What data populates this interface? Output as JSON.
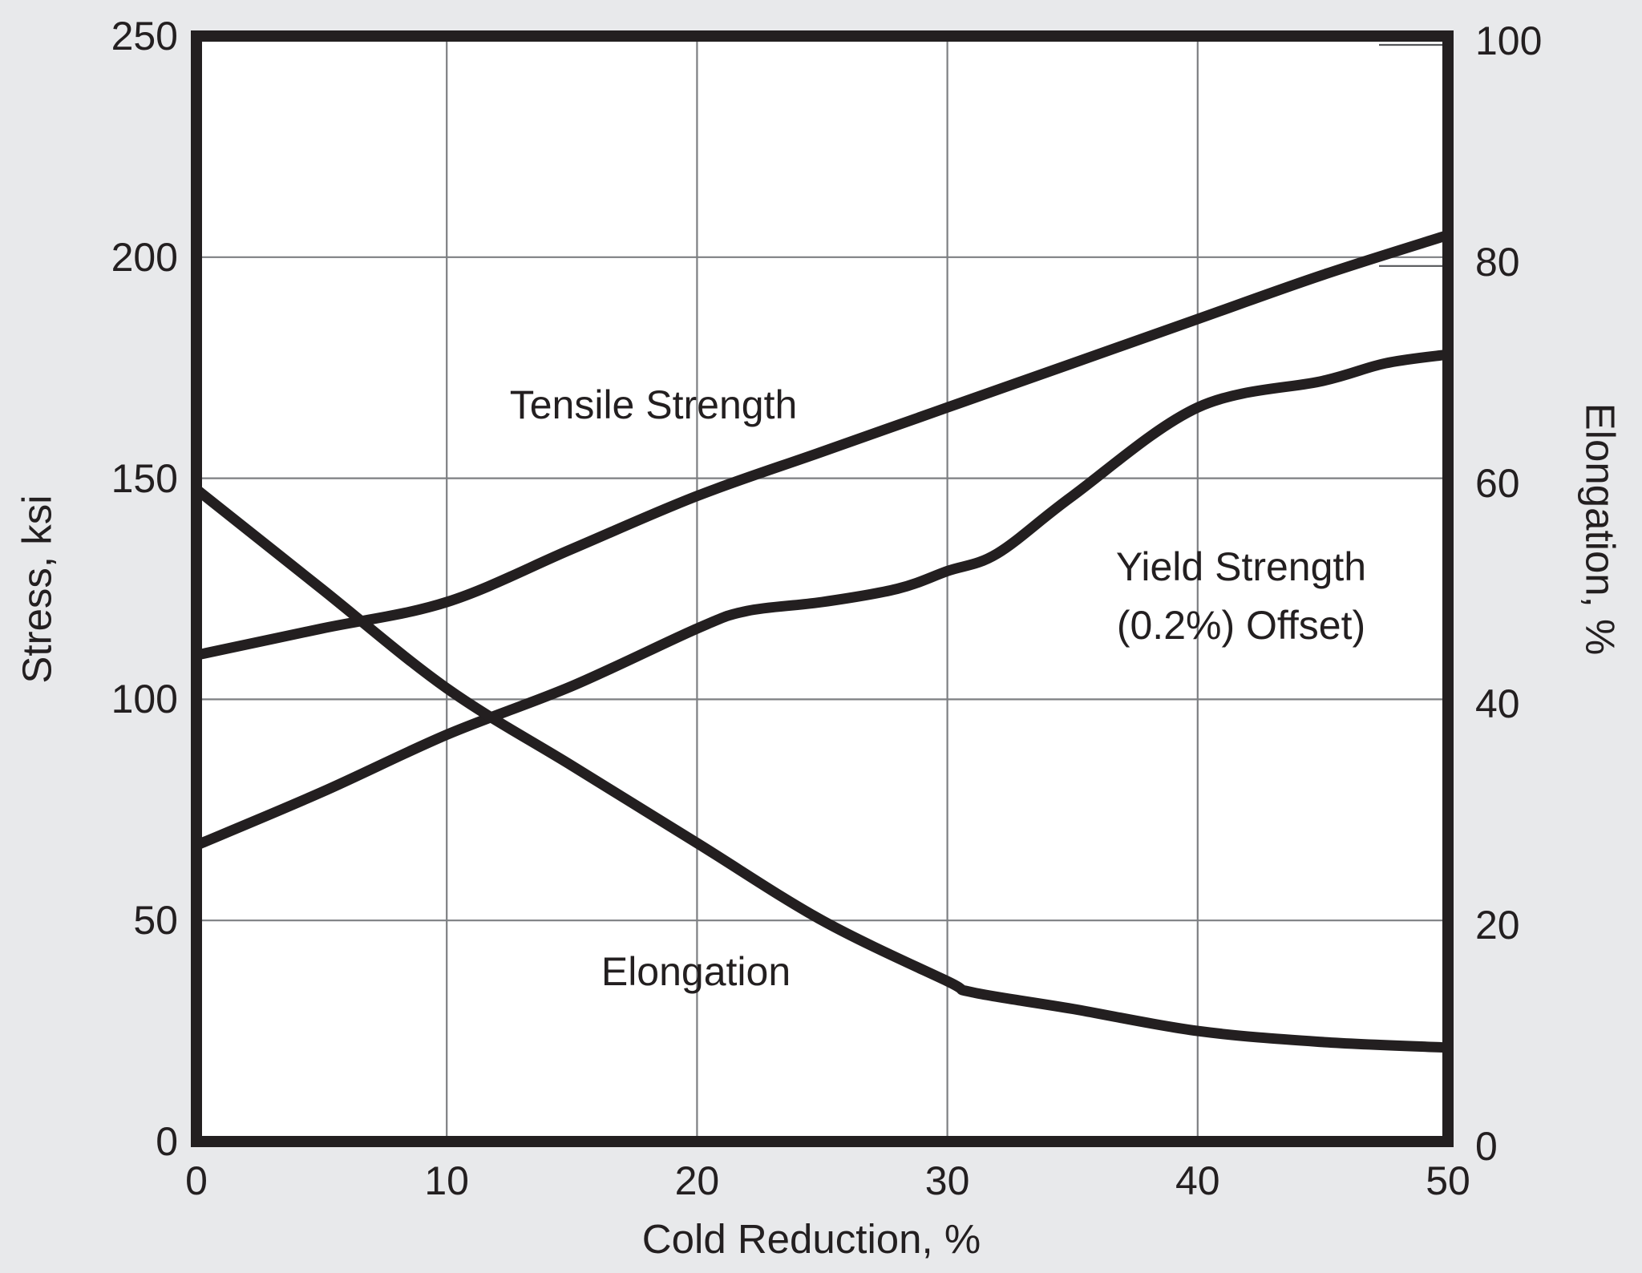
{
  "figure": {
    "background_color": "#e8e9eb",
    "plot_background": "#ffffff",
    "line_color": "#231f20",
    "grid_color": "#7d7f82",
    "text_color": "#231f20"
  },
  "axes": {
    "x": {
      "title": "Cold Reduction, %",
      "ticks": [
        0,
        10,
        20,
        30,
        40,
        50
      ],
      "range": [
        0,
        50
      ]
    },
    "y_left": {
      "title": "Stress, ksi",
      "ticks": [
        0,
        50,
        100,
        150,
        200,
        250
      ],
      "range": [
        0,
        250
      ]
    },
    "y_right": {
      "title": "Elongation, %",
      "ticks": [
        0,
        20,
        40,
        60,
        80,
        100
      ],
      "range": [
        0,
        100
      ]
    }
  },
  "curve_labels": {
    "tensile": "Tensile Strength",
    "yield_line1": "Yield Strength",
    "yield_line2": "(0.2%) Offset)",
    "elongation": "Elongation"
  },
  "chart_data": {
    "type": "line",
    "title": "",
    "xlabel": "Cold Reduction, %",
    "ylabel_left": "Stress, ksi",
    "ylabel_right": "Elongation, %",
    "x_range": [
      0,
      50
    ],
    "y_left_range": [
      0,
      250
    ],
    "y_right_range": [
      0,
      100
    ],
    "grid": true,
    "legend": "labels-on-chart",
    "series": [
      {
        "name": "Tensile Strength",
        "y_axis": "left",
        "units": "ksi",
        "x": [
          0,
          5,
          10,
          15,
          20,
          25,
          30,
          35,
          40,
          45,
          50
        ],
        "y": [
          110,
          116,
          122,
          134,
          146,
          156,
          166,
          176,
          186,
          196,
          205
        ]
      },
      {
        "name": "Yield Strength (0.2%) Offset",
        "y_axis": "left",
        "units": "ksi",
        "x": [
          0,
          5,
          10,
          15,
          20,
          22,
          25,
          28,
          30,
          32,
          35,
          40,
          45,
          47.5,
          50
        ],
        "y": [
          67,
          79,
          92,
          103,
          116,
          120,
          122,
          125,
          129,
          133,
          146,
          166,
          172,
          176,
          178
        ]
      },
      {
        "name": "Elongation",
        "y_axis": "right",
        "units": "%",
        "x": [
          0,
          5,
          10,
          15,
          20,
          25,
          30,
          31,
          35,
          40,
          45,
          50
        ],
        "y": [
          59,
          50,
          41,
          34,
          27,
          20,
          14.5,
          13.5,
          12,
          10,
          9,
          8.5
        ]
      }
    ]
  }
}
